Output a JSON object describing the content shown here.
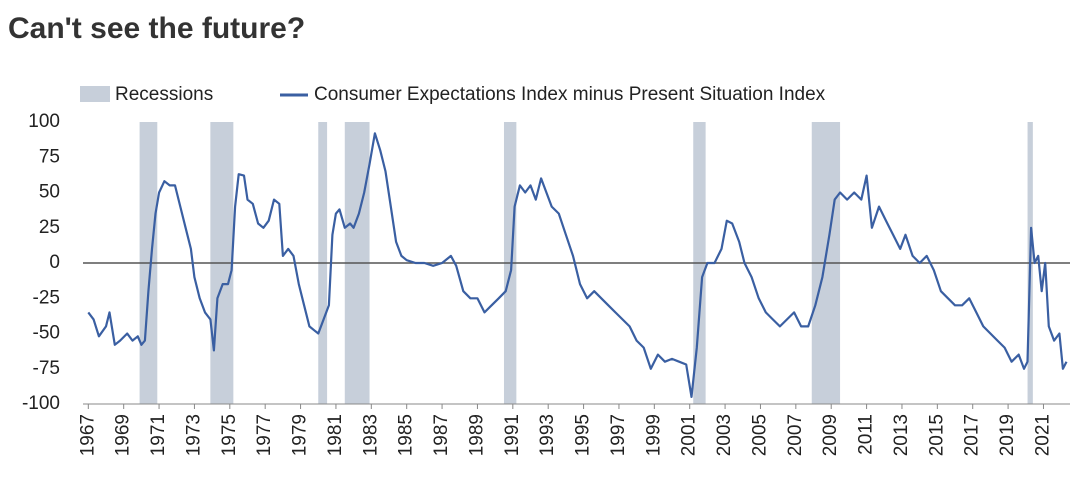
{
  "chart_data": {
    "type": "line",
    "title": "Can't see the future?",
    "recession_label": "Recessions",
    "recession_color": "#c7cfda",
    "recessions": [
      [
        1969.9,
        1970.9
      ],
      [
        1973.9,
        1975.2
      ],
      [
        1980.0,
        1980.5
      ],
      [
        1981.5,
        1982.9
      ],
      [
        1990.5,
        1991.2
      ],
      [
        2001.2,
        2001.9
      ],
      [
        2007.9,
        2009.5
      ],
      [
        2020.1,
        2020.4
      ]
    ],
    "x": [
      1967.0,
      1967.3,
      1967.6,
      1968.0,
      1968.2,
      1968.5,
      1968.8,
      1969.2,
      1969.5,
      1969.8,
      1970.0,
      1970.2,
      1970.4,
      1970.6,
      1970.8,
      1971.0,
      1971.3,
      1971.6,
      1971.9,
      1972.2,
      1972.5,
      1972.8,
      1973.0,
      1973.3,
      1973.6,
      1973.9,
      1974.1,
      1974.3,
      1974.6,
      1974.9,
      1975.1,
      1975.3,
      1975.5,
      1975.8,
      1976.0,
      1976.3,
      1976.6,
      1976.9,
      1977.2,
      1977.5,
      1977.8,
      1978.0,
      1978.3,
      1978.6,
      1978.9,
      1979.2,
      1979.5,
      1979.8,
      1980.0,
      1980.3,
      1980.6,
      1980.8,
      1981.0,
      1981.2,
      1981.5,
      1981.8,
      1982.0,
      1982.3,
      1982.6,
      1982.9,
      1983.2,
      1983.5,
      1983.8,
      1984.1,
      1984.4,
      1984.7,
      1985.0,
      1985.5,
      1986.0,
      1986.5,
      1987.0,
      1987.5,
      1987.8,
      1988.2,
      1988.6,
      1989.0,
      1989.4,
      1989.8,
      1990.2,
      1990.6,
      1990.9,
      1991.1,
      1991.4,
      1991.7,
      1992.0,
      1992.3,
      1992.6,
      1992.9,
      1993.2,
      1993.6,
      1994.0,
      1994.4,
      1994.8,
      1995.2,
      1995.6,
      1996.0,
      1996.4,
      1996.8,
      1997.2,
      1997.6,
      1998.0,
      1998.4,
      1998.8,
      1999.2,
      1999.6,
      2000.0,
      2000.4,
      2000.8,
      2001.1,
      2001.4,
      2001.7,
      2002.0,
      2002.4,
      2002.8,
      2003.1,
      2003.4,
      2003.8,
      2004.1,
      2004.5,
      2004.9,
      2005.3,
      2005.7,
      2006.1,
      2006.5,
      2006.9,
      2007.3,
      2007.7,
      2008.1,
      2008.5,
      2008.9,
      2009.2,
      2009.5,
      2009.9,
      2010.3,
      2010.7,
      2011.0,
      2011.3,
      2011.7,
      2012.1,
      2012.5,
      2012.9,
      2013.2,
      2013.6,
      2014.0,
      2014.4,
      2014.8,
      2015.2,
      2015.6,
      2016.0,
      2016.4,
      2016.8,
      2017.2,
      2017.6,
      2018.0,
      2018.4,
      2018.8,
      2019.2,
      2019.6,
      2019.9,
      2020.1,
      2020.3,
      2020.5,
      2020.7,
      2020.9,
      2021.1,
      2021.3,
      2021.6,
      2021.9,
      2022.1,
      2022.3
    ],
    "series": [
      {
        "name": "Consumer Expectations Index minus Present Situation Index",
        "color": "#3a5fa2",
        "values": [
          -35,
          -40,
          -52,
          -45,
          -35,
          -58,
          -55,
          -50,
          -55,
          -52,
          -58,
          -55,
          -20,
          10,
          35,
          50,
          58,
          55,
          55,
          40,
          25,
          10,
          -10,
          -25,
          -35,
          -40,
          -62,
          -25,
          -15,
          -15,
          -5,
          40,
          63,
          62,
          45,
          42,
          28,
          25,
          30,
          45,
          42,
          5,
          10,
          5,
          -15,
          -30,
          -45,
          -48,
          -50,
          -40,
          -30,
          20,
          35,
          38,
          25,
          28,
          25,
          35,
          50,
          70,
          92,
          80,
          65,
          40,
          15,
          5,
          2,
          0,
          0,
          -2,
          0,
          5,
          -2,
          -20,
          -25,
          -25,
          -35,
          -30,
          -25,
          -20,
          -5,
          40,
          55,
          50,
          55,
          45,
          60,
          50,
          40,
          35,
          20,
          5,
          -15,
          -25,
          -20,
          -25,
          -30,
          -35,
          -40,
          -45,
          -55,
          -60,
          -75,
          -65,
          -70,
          -68,
          -70,
          -72,
          -95,
          -60,
          -10,
          0,
          0,
          10,
          30,
          28,
          15,
          0,
          -10,
          -25,
          -35,
          -40,
          -45,
          -40,
          -35,
          -45,
          -45,
          -30,
          -10,
          20,
          45,
          50,
          45,
          50,
          45,
          62,
          25,
          40,
          30,
          20,
          10,
          20,
          5,
          0,
          5,
          -5,
          -20,
          -25,
          -30,
          -30,
          -25,
          -35,
          -45,
          -50,
          -55,
          -60,
          -70,
          -65,
          -75,
          -70,
          25,
          0,
          5,
          -20,
          0,
          -45,
          -55,
          -50,
          -75,
          -70
        ]
      }
    ],
    "xlim": [
      1966.7,
      2022.5
    ],
    "xticks": [
      1967,
      1969,
      1971,
      1973,
      1975,
      1977,
      1979,
      1981,
      1983,
      1985,
      1987,
      1989,
      1991,
      1993,
      1995,
      1997,
      1999,
      2001,
      2003,
      2005,
      2007,
      2009,
      2011,
      2013,
      2015,
      2017,
      2019,
      2021
    ],
    "ylim": [
      -100,
      100
    ],
    "yticks": [
      -100,
      -75,
      -50,
      -25,
      0,
      25,
      50,
      75,
      100
    ]
  }
}
